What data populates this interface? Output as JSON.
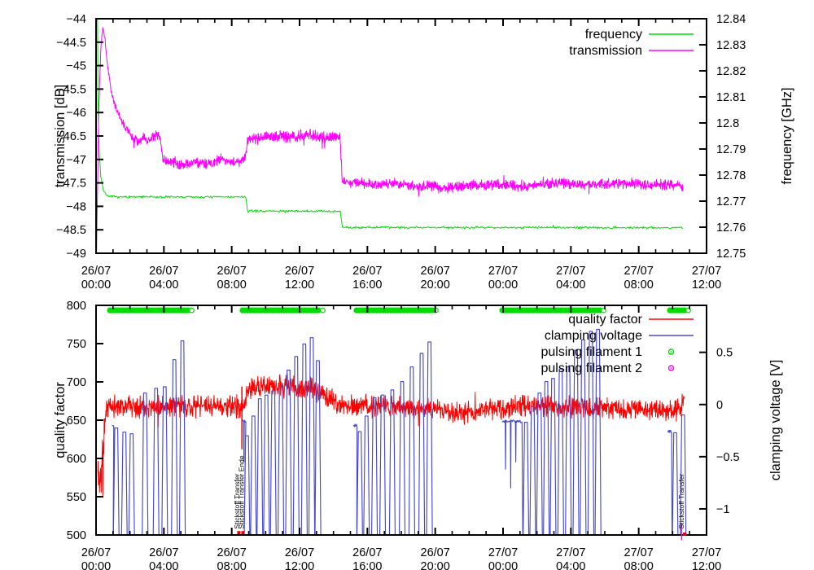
{
  "chart_data": [
    {
      "type": "line",
      "panel": "top",
      "ylabel_left": "transmission [dB]",
      "ylabel_right": "frequency [GHz]",
      "ylim_left": [
        -49,
        -44
      ],
      "ytick_step_left": 0.5,
      "ylim_right": [
        12.75,
        12.84
      ],
      "ytick_step_right": 0.01,
      "xlim_hours": [
        0,
        36
      ],
      "xtick_major_hours": 4,
      "xtick_minor_hours": 1,
      "xtick_labels": [
        [
          "26/07",
          "00:00"
        ],
        [
          "26/07",
          "04:00"
        ],
        [
          "26/07",
          "08:00"
        ],
        [
          "26/07",
          "12:00"
        ],
        [
          "26/07",
          "16:00"
        ],
        [
          "26/07",
          "20:00"
        ],
        [
          "27/07",
          "00:00"
        ],
        [
          "27/07",
          "04:00"
        ],
        [
          "27/07",
          "08:00"
        ],
        [
          "27/07",
          "12:00"
        ]
      ],
      "legend": [
        {
          "label": "frequency",
          "color": "#00dc00",
          "style": "line"
        },
        {
          "label": "transmission",
          "color": "#ff00ff",
          "style": "line"
        }
      ],
      "series": [
        {
          "name": "frequency",
          "axis": "right",
          "color": "#00dc00",
          "noise_seed": 7,
          "sample_dt": 0.04,
          "keypoints": [
            [
              0.08,
              12.846,
              0
            ],
            [
              0.12,
              12.806,
              0.0006
            ],
            [
              0.18,
              12.789,
              0.0005
            ],
            [
              0.28,
              12.7795,
              0.0005
            ],
            [
              0.45,
              12.7737,
              0.0005
            ],
            [
              0.7,
              12.7719,
              0.0005
            ],
            [
              1.2,
              12.7716,
              0.0005
            ],
            [
              8.82,
              12.7716,
              0.0005
            ],
            [
              8.94,
              12.7662,
              0.0005
            ],
            [
              14.4,
              12.7661,
              0.0005
            ],
            [
              14.53,
              12.7599,
              0.0005
            ],
            [
              24,
              12.7599,
              0.0005
            ],
            [
              34.62,
              12.7598,
              0.0005
            ]
          ]
        },
        {
          "name": "transmission",
          "axis": "left",
          "color": "#ff00ff",
          "noise_seed": 3,
          "sample_dt": 0.018,
          "keypoints": [
            [
              0.0,
              -49.6,
              0.03
            ],
            [
              0.08,
              -47.8,
              0.06
            ],
            [
              0.16,
              -45.9,
              0.06
            ],
            [
              0.28,
              -44.65,
              0.05
            ],
            [
              0.4,
              -44.18,
              0.05
            ],
            [
              0.52,
              -44.45,
              0.06
            ],
            [
              0.68,
              -45.0,
              0.07
            ],
            [
              0.9,
              -45.55,
              0.08
            ],
            [
              1.2,
              -45.95,
              0.09
            ],
            [
              1.6,
              -46.25,
              0.1
            ],
            [
              2.1,
              -46.5,
              0.11
            ],
            [
              2.5,
              -46.62,
              0.12
            ],
            [
              2.8,
              -46.52,
              0.13
            ],
            [
              3.05,
              -46.62,
              0.13
            ],
            [
              3.3,
              -46.55,
              0.13
            ],
            [
              3.55,
              -46.48,
              0.13
            ],
            [
              3.78,
              -46.5,
              0.13
            ],
            [
              3.95,
              -47.02,
              0.13
            ],
            [
              4.6,
              -47.07,
              0.14
            ],
            [
              5.4,
              -47.12,
              0.14
            ],
            [
              6.2,
              -47.05,
              0.14
            ],
            [
              6.8,
              -47.1,
              0.13
            ],
            [
              7.4,
              -46.98,
              0.14
            ],
            [
              8.0,
              -47.07,
              0.14
            ],
            [
              8.5,
              -47.02,
              0.13
            ],
            [
              8.82,
              -46.95,
              0.12
            ],
            [
              8.92,
              -46.55,
              0.14
            ],
            [
              9.6,
              -46.55,
              0.14
            ],
            [
              10.6,
              -46.5,
              0.15
            ],
            [
              11.6,
              -46.53,
              0.15
            ],
            [
              12.6,
              -46.48,
              0.15
            ],
            [
              13.6,
              -46.53,
              0.14
            ],
            [
              14.38,
              -46.5,
              0.14
            ],
            [
              14.52,
              -47.48,
              0.13
            ],
            [
              15.6,
              -47.5,
              0.13
            ],
            [
              16.6,
              -47.56,
              0.13
            ],
            [
              17.6,
              -47.5,
              0.13
            ],
            [
              18.6,
              -47.56,
              0.13
            ],
            [
              19.6,
              -47.56,
              0.13
            ],
            [
              20.6,
              -47.62,
              0.13
            ],
            [
              21.6,
              -47.57,
              0.13
            ],
            [
              22.6,
              -47.55,
              0.13
            ],
            [
              23.6,
              -47.52,
              0.13
            ],
            [
              24.6,
              -47.56,
              0.13
            ],
            [
              25.6,
              -47.56,
              0.13
            ],
            [
              26.6,
              -47.52,
              0.13
            ],
            [
              27.6,
              -47.5,
              0.13
            ],
            [
              28.6,
              -47.56,
              0.13
            ],
            [
              29.6,
              -47.53,
              0.13
            ],
            [
              30.6,
              -47.5,
              0.14
            ],
            [
              31.6,
              -47.5,
              0.13
            ],
            [
              32.6,
              -47.56,
              0.13
            ],
            [
              33.6,
              -47.53,
              0.13
            ],
            [
              34.3,
              -47.56,
              0.13
            ],
            [
              34.65,
              -47.62,
              0.11
            ]
          ]
        }
      ]
    },
    {
      "type": "line",
      "panel": "bottom",
      "ylabel_left": "quality factor",
      "ylabel_right": "clamping voltage [V]",
      "ylim_left": [
        500,
        800
      ],
      "ytick_step_left": 50,
      "ylim_right": [
        -1.25,
        0.95
      ],
      "yticks_right": [
        0.5,
        0,
        -0.5,
        -1
      ],
      "xlim_hours": [
        0,
        36
      ],
      "xtick_major_hours": 4,
      "xtick_minor_hours": 1,
      "xtick_labels": [
        [
          "26/07",
          "00:00"
        ],
        [
          "26/07",
          "04:00"
        ],
        [
          "26/07",
          "08:00"
        ],
        [
          "26/07",
          "12:00"
        ],
        [
          "26/07",
          "16:00"
        ],
        [
          "26/07",
          "20:00"
        ],
        [
          "27/07",
          "00:00"
        ],
        [
          "27/07",
          "04:00"
        ],
        [
          "27/07",
          "08:00"
        ],
        [
          "27/07",
          "12:00"
        ]
      ],
      "legend": [
        {
          "label": "quality factor",
          "color": "#ff0000",
          "style": "line"
        },
        {
          "label": "clamping voltage",
          "color": "#4848d0",
          "style": "line"
        },
        {
          "label": "pulsing filament 1",
          "color": "#00dc00",
          "style": "circle"
        },
        {
          "label": "pulsing filament 2",
          "color": "#ff00ff",
          "style": "circle"
        }
      ],
      "series": [
        {
          "name": "quality factor",
          "axis": "left",
          "color": "#ff0000",
          "noise_seed": 11,
          "sample_dt": 0.02,
          "keypoints": [
            [
              0.1,
              580,
              38
            ],
            [
              0.3,
              578,
              32
            ],
            [
              0.42,
              600,
              55
            ],
            [
              0.52,
              648,
              25
            ],
            [
              0.65,
              668,
              17
            ],
            [
              2,
              668,
              17
            ],
            [
              4,
              669,
              17
            ],
            [
              6,
              668,
              17
            ],
            [
              8.7,
              668,
              17
            ],
            [
              8.95,
              690,
              17
            ],
            [
              10.5,
              694,
              17
            ],
            [
              12,
              693,
              17
            ],
            [
              13,
              690,
              17
            ],
            [
              13.6,
              680,
              17
            ],
            [
              14.2,
              671,
              17
            ],
            [
              15.5,
              668,
              17
            ],
            [
              17,
              669,
              17
            ],
            [
              18.5,
              668,
              17
            ],
            [
              19.8,
              665,
              16
            ],
            [
              20.8,
              661,
              16
            ],
            [
              21.8,
              659,
              16
            ],
            [
              22.8,
              662,
              16
            ],
            [
              24,
              666,
              17
            ],
            [
              25.5,
              668,
              17
            ],
            [
              27,
              668,
              17
            ],
            [
              28.5,
              667,
              17
            ],
            [
              29.8,
              666,
              17
            ],
            [
              31,
              664,
              16
            ],
            [
              32.5,
              663,
              16
            ],
            [
              33.8,
              663,
              16
            ],
            [
              34.45,
              665,
              17
            ],
            [
              34.68,
              678,
              16
            ]
          ]
        },
        {
          "name": "clamping voltage",
          "axis": "right",
          "color": "#4848d0",
          "noise_seed": 21,
          "pulse_half_width_hours": 0.18,
          "pulse_top_half_width_hours": 0.085,
          "clip_floor": -1.45,
          "clusters": [
            {
              "baseline": [
                0.95,
                1.06,
                -0.2
              ],
              "dips": [],
              "pulses": [
                [
                  1.19,
                  -0.225
                ],
                [
                  1.67,
                  -0.265
                ],
                [
                  2.1,
                  -0.28
                ],
                [
                  2.89,
                  0.11
                ],
                [
                  3.54,
                  0.155
                ],
                [
                  4.05,
                  0.17
                ],
                [
                  4.62,
                  0.43
                ],
                [
                  5.09,
                  0.61
                ]
              ]
            },
            {
              "baseline": [
                8.62,
                8.83,
                -0.16
              ],
              "dips": [
                [
                  8.72,
                  -0.55
                ]
              ],
              "pulses": [
                [
                  8.9,
                  -0.3
                ],
                [
                  9.28,
                  -0.11
                ],
                [
                  9.66,
                  0.055
                ],
                [
                  10.05,
                  0.09
                ],
                [
                  10.45,
                  0.13
                ],
                [
                  10.9,
                  0.18
                ],
                [
                  11.35,
                  0.33
                ],
                [
                  11.8,
                  0.46
                ],
                [
                  12.28,
                  0.58
                ],
                [
                  12.72,
                  0.64
                ],
                [
                  13.08,
                  0.42
                ]
              ]
            },
            {
              "baseline": [
                15.18,
                15.4,
                -0.2
              ],
              "dips": [],
              "pulses": [
                [
                  15.55,
                  -0.26
                ],
                [
                  15.95,
                  -0.11
                ],
                [
                  16.42,
                  0.065
                ],
                [
                  16.9,
                  0.09
                ],
                [
                  17.47,
                  0.14
                ],
                [
                  18.05,
                  0.22
                ],
                [
                  18.62,
                  0.36
                ],
                [
                  19.2,
                  0.49
                ],
                [
                  19.66,
                  0.6
                ]
              ]
            },
            {
              "baseline": [
                23.95,
                25.15,
                -0.16
              ],
              "dips": [
                [
                  24.15,
                  -0.62
                ],
                [
                  24.45,
                  -0.8
                ],
                [
                  24.75,
                  -0.55
                ]
              ],
              "pulses": [
                [
                  25.35,
                  -0.17
                ],
                [
                  25.75,
                  -0.02
                ],
                [
                  26.15,
                  0.11
                ],
                [
                  26.55,
                  0.22
                ],
                [
                  26.95,
                  0.25
                ],
                [
                  27.4,
                  0.34
                ],
                [
                  27.85,
                  0.36
                ],
                [
                  28.3,
                  0.52
                ],
                [
                  28.72,
                  0.62
                ],
                [
                  29.18,
                  0.7
                ],
                [
                  29.6,
                  0.72
                ]
              ]
            },
            {
              "baseline": [
                33.7,
                33.95,
                -0.26
              ],
              "dips": [],
              "pulses": [
                [
                  34.15,
                  -0.27
                ],
                [
                  34.62,
                  -0.1
                ]
              ]
            }
          ]
        },
        {
          "name": "pulsing filament 1",
          "axis": "left",
          "color": "#00dc00",
          "marker": "circle",
          "marker_value": 793.5,
          "bands_hours": [
            [
              0.82,
              5.47
            ],
            [
              8.64,
              13.2
            ],
            [
              15.36,
              19.87
            ],
            [
              23.95,
              29.76
            ],
            [
              33.84,
              34.75
            ]
          ]
        },
        {
          "name": "pulsing filament 2",
          "axis": "left",
          "color": "#ff00ff",
          "marker": "circle",
          "marker_value": 793.5,
          "bands_hours": []
        }
      ],
      "annotations": {
        "color": "#cc1111",
        "labels": [
          {
            "text": "Stickstoff Transfer",
            "x_hours": 8.45,
            "bottom_value": 508
          },
          {
            "text": "Stickstoff Transfer Ende",
            "x_hours": 8.72,
            "bottom_value": 508
          },
          {
            "text": "Stickstoff Transfer",
            "x_hours": 34.66,
            "bottom_value": 508
          }
        ],
        "lines": [
          {
            "x_hours": 8.6,
            "v1": 694,
            "v2": 612,
            "color": "#ee0000"
          },
          {
            "x_hours": 34.53,
            "v1": 515,
            "v2": 493,
            "color": "#ff00ff"
          }
        ],
        "markers": [
          {
            "x_hours": 8.42,
            "value": 503,
            "color": "#ee0000"
          },
          {
            "x_hours": 8.66,
            "value": 503,
            "color": "#ee0000"
          },
          {
            "x_hours": 34.7,
            "value": 501,
            "color": "#ee0000"
          }
        ]
      }
    }
  ]
}
